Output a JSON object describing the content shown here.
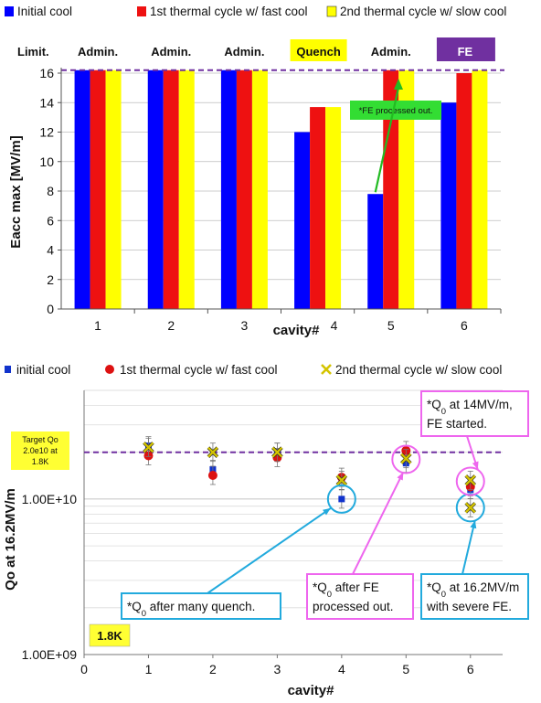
{
  "chart_data": [
    {
      "type": "bar",
      "legend": [
        "Initial cool",
        "1st thermal cycle w/ fast cool",
        "2nd thermal cycle w/ slow cool"
      ],
      "colors": [
        "#0000ff",
        "#ee1111",
        "#ffff00"
      ],
      "categories": [
        "1",
        "2",
        "3",
        "4",
        "5",
        "6"
      ],
      "series": [
        {
          "name": "Initial cool",
          "values": [
            16.2,
            16.2,
            16.2,
            12.0,
            7.8,
            14.0
          ]
        },
        {
          "name": "1st thermal cycle w/ fast cool",
          "values": [
            16.2,
            16.2,
            16.2,
            13.7,
            16.2,
            16.0
          ]
        },
        {
          "name": "2nd thermal cycle w/ slow cool",
          "values": [
            16.2,
            16.2,
            16.2,
            13.7,
            16.2,
            16.2
          ]
        }
      ],
      "limit_header": "Limit.",
      "limitations": [
        {
          "text": "Admin.",
          "style": "plain"
        },
        {
          "text": "Admin.",
          "style": "plain"
        },
        {
          "text": "Admin.",
          "style": "plain"
        },
        {
          "text": "Quench",
          "style": "yellow"
        },
        {
          "text": "Admin.",
          "style": "plain"
        },
        {
          "text": "FE",
          "style": "purple"
        }
      ],
      "target_line": 16.2,
      "annotation": "*FE processed out.",
      "xlabel": "cavity#",
      "ylabel": "Eacc max [MV/m]",
      "ylim": [
        0,
        16
      ],
      "yticks": [
        0,
        2,
        4,
        6,
        8,
        10,
        12,
        14,
        16
      ],
      "grid": true,
      "legend_position": "top"
    },
    {
      "type": "scatter",
      "scale": "log-y",
      "legend": [
        "initial cool",
        "1st thermal cycle w/ fast cool",
        "2nd thermal cycle w/ slow cool"
      ],
      "series": [
        {
          "name": "initial cool",
          "marker": "square",
          "color": "#1133cc",
          "points": [
            {
              "x": 1,
              "y": 22000000000.0
            },
            {
              "x": 2,
              "y": 15500000000.0
            },
            {
              "x": 3,
              "y": 20000000000.0
            },
            {
              "x": 4,
              "y": 10000000000.0
            },
            {
              "x": 5,
              "y": 17000000000.0
            },
            {
              "x": 6,
              "y": 11500000000.0
            }
          ]
        },
        {
          "name": "1st thermal cycle w/ fast cool",
          "marker": "circle",
          "color": "#dd1111",
          "points": [
            {
              "x": 1,
              "y": 19000000000.0
            },
            {
              "x": 2,
              "y": 14200000000.0
            },
            {
              "x": 3,
              "y": 18500000000.0
            },
            {
              "x": 4,
              "y": 13800000000.0
            },
            {
              "x": 5,
              "y": 20500000000.0
            },
            {
              "x": 6,
              "y": 12000000000.0
            }
          ]
        },
        {
          "name": "2nd thermal cycle w/ slow cool",
          "marker": "x",
          "color": "#d4c400",
          "points": [
            {
              "x": 1,
              "y": 21500000000.0
            },
            {
              "x": 2,
              "y": 20000000000.0
            },
            {
              "x": 3,
              "y": 20000000000.0
            },
            {
              "x": 4,
              "y": 13200000000.0
            },
            {
              "x": 5,
              "y": 18200000000.0
            },
            {
              "x": 6,
              "y": 13200000000.0
            }
          ]
        },
        {
          "name": "",
          "marker": "x",
          "color": "#d4c400",
          "points": [
            {
              "x": 6,
              "y": 8800000000.0
            }
          ]
        }
      ],
      "target_label": [
        "Target Qo",
        "2.0e10 at",
        "1.8K"
      ],
      "target_value": 20000000000.0,
      "temperature_badge": "1.8K",
      "callouts": [
        {
          "lines": [
            "*Q0 after many quench."
          ],
          "target": {
            "x": 4,
            "y": 10000000000.0
          },
          "color": "#22aadd"
        },
        {
          "lines": [
            "*Q0 after FE",
            "processed out."
          ],
          "target": {
            "x": 5,
            "y": 18000000000.0
          },
          "color": "#ee66ee"
        },
        {
          "lines": [
            "*Q0 at 16.2MV/m",
            "with severe FE."
          ],
          "target": {
            "x": 6,
            "y": 8800000000.0
          },
          "color": "#22aadd"
        },
        {
          "lines": [
            "*Q0 at 14MV/m,",
            "FE started."
          ],
          "target": {
            "x": 6,
            "y": 13000000000.0
          },
          "color": "#ee66ee"
        }
      ],
      "xlabel": "cavity#",
      "ylabel": "Qo at 16.2MV/m",
      "xlim": [
        0,
        6.5
      ],
      "xticks": [
        0,
        1,
        2,
        3,
        4,
        5,
        6
      ],
      "ylim": [
        1000000000.0,
        50000000000.0
      ],
      "ytick_labels": [
        {
          "value": 1000000000.0,
          "label": "1.00E+09"
        },
        {
          "value": 10000000000.0,
          "label": "1.00E+10"
        }
      ],
      "grid": true,
      "legend_position": "top"
    }
  ]
}
